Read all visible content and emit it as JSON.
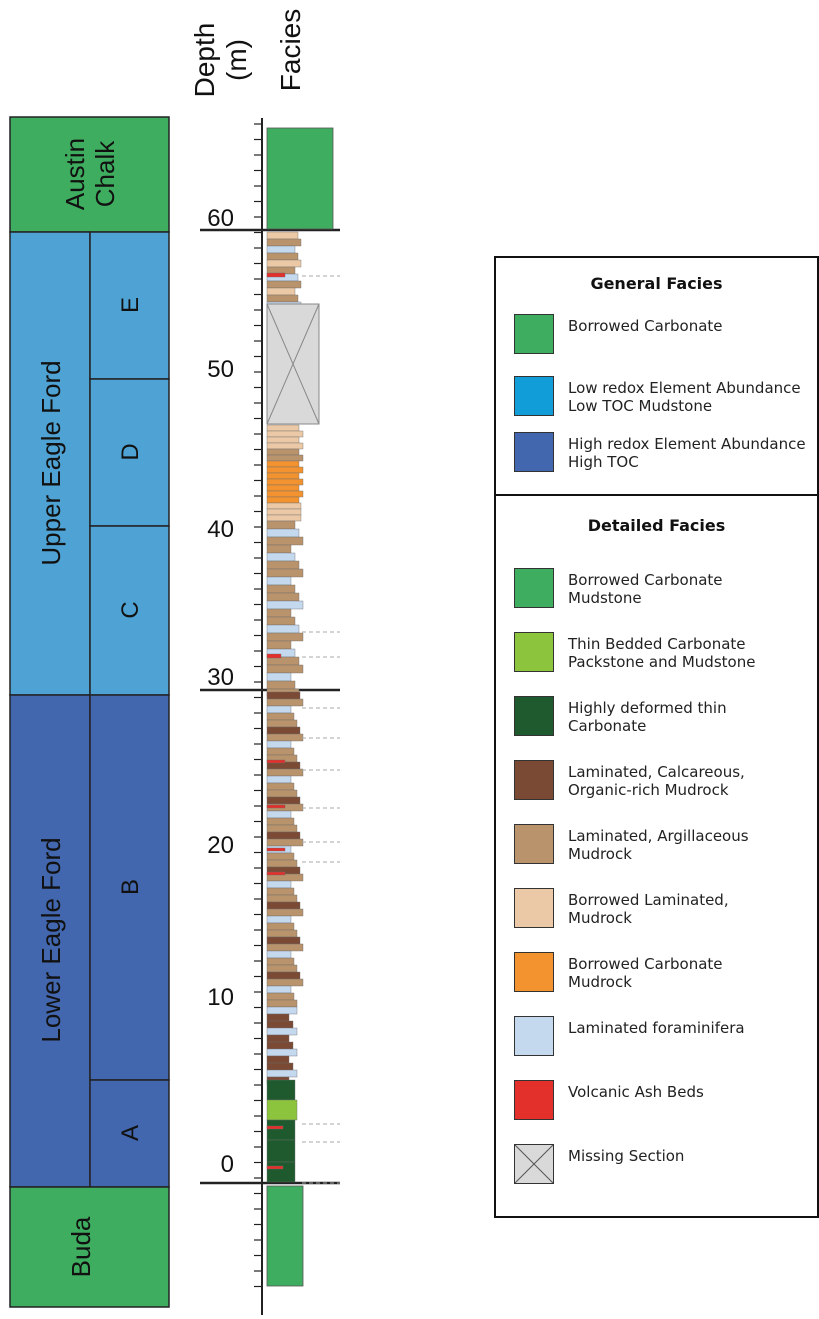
{
  "headers": {
    "depth": "Depth\n(m)",
    "facies": "Facies"
  },
  "formations": [
    {
      "name": "Austin\nChalk",
      "color": "#3fad5f"
    },
    {
      "name": "Upper Eagle Ford",
      "color": "#4fa3d4"
    },
    {
      "name": "Lower Eagle Ford",
      "color": "#4267ae"
    },
    {
      "name": "Buda",
      "color": "#3fad5f"
    }
  ],
  "units": [
    "E",
    "D",
    "C",
    "B",
    "A"
  ],
  "depth_ticks": [
    "60",
    "50",
    "40",
    "30",
    "20",
    "10",
    "0"
  ],
  "legend": {
    "general_title": "General Facies",
    "general": [
      {
        "label": "Borrowed Carbonate",
        "color": "#3fad5f"
      },
      {
        "label": "Low redox Element Abundance\nLow TOC Mudstone",
        "color": "#119dd8"
      },
      {
        "label": "High redox Element Abundance\nHigh TOC",
        "color": "#4267ae"
      }
    ],
    "detailed_title": "Detailed Facies",
    "detailed": [
      {
        "label": "Borrowed Carbonate\nMudstone",
        "color": "#3fad5f"
      },
      {
        "label": "Thin Bedded Carbonate\nPackstone and Mudstone",
        "color": "#8cc43d"
      },
      {
        "label": "Highly deformed thin\nCarbonate",
        "color": "#1f5a2e"
      },
      {
        "label": "Laminated, Calcareous,\nOrganic-rich Mudrock",
        "color": "#7a4a35"
      },
      {
        "label": "Laminated, Argillaceous\nMudrock",
        "color": "#b8936c"
      },
      {
        "label": "Borrowed Laminated,\nMudrock",
        "color": "#ebc9a6"
      },
      {
        "label": "Borrowed Carbonate\nMudrock",
        "color": "#f29330"
      },
      {
        "label": "Laminated foraminifera",
        "color": "#c4d8ee"
      },
      {
        "label": "Volcanic Ash Beds",
        "color": "#e3302b"
      },
      {
        "label": "Missing Section",
        "color": "#d9d9d9"
      }
    ]
  }
}
